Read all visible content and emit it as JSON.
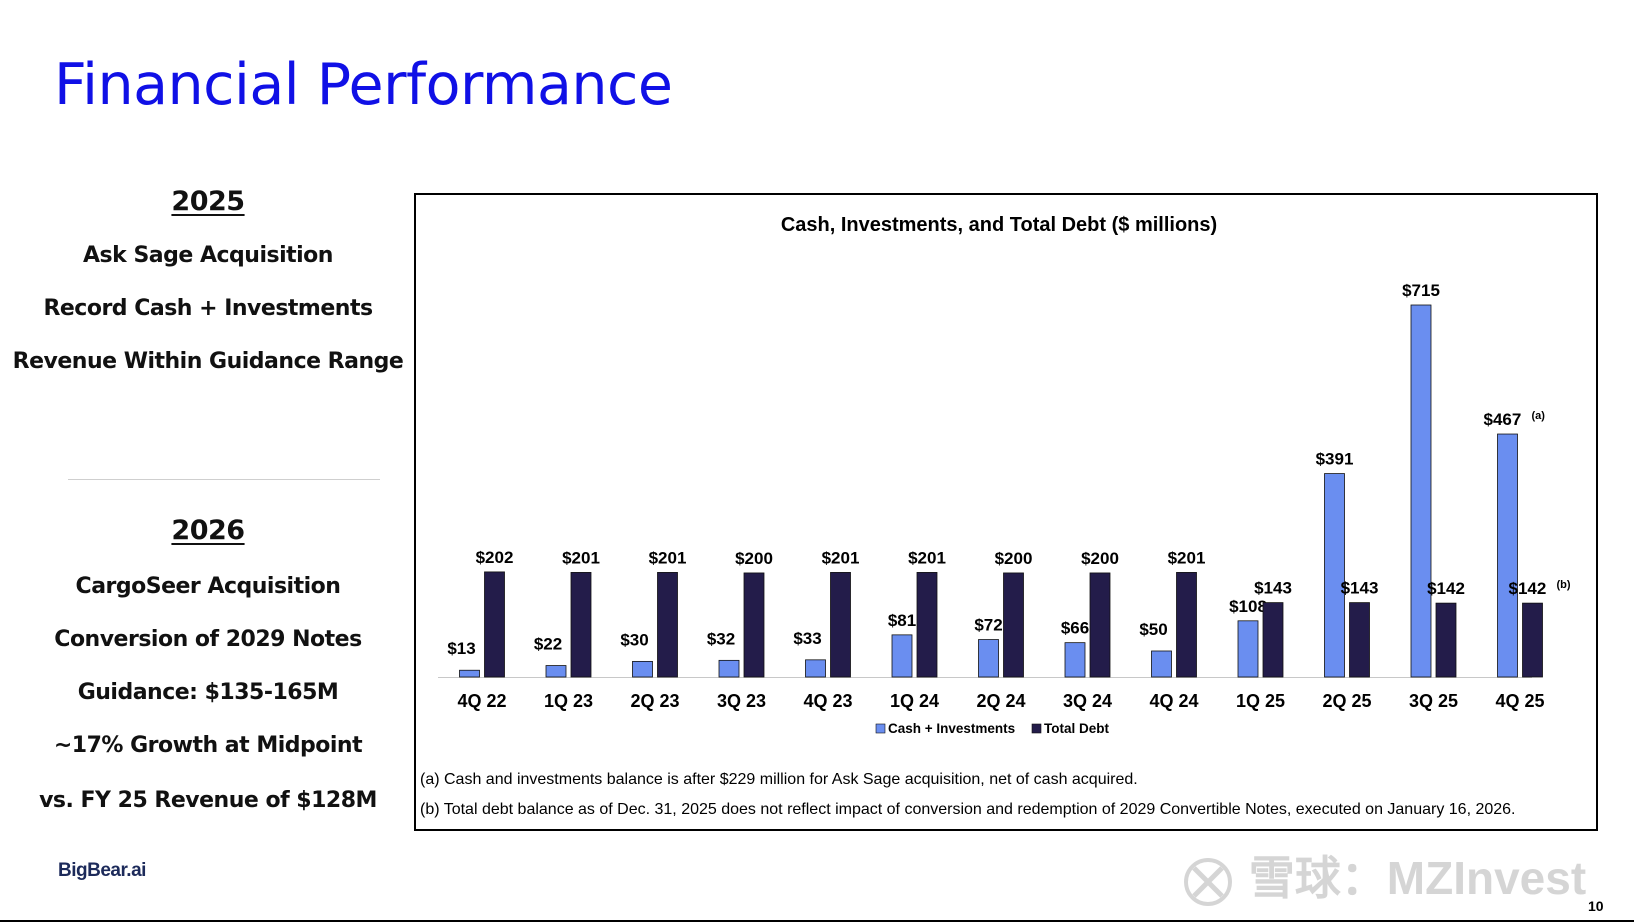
{
  "slide": {
    "title": "Financial Performance",
    "page_number": "10",
    "logo": "BigBear.ai",
    "watermark": "雪球：MZInvest"
  },
  "sidebar": {
    "year_2025": "2025",
    "items_2025": [
      "Ask Sage Acquisition",
      "Record Cash + Investments",
      "Revenue Within Guidance Range"
    ],
    "year_2026": "2026",
    "items_2026": [
      "CargoSeer Acquisition",
      "Conversion of 2029 Notes",
      "Guidance: $135-165M",
      "~17% Growth at Midpoint",
      "vs. FY 25 Revenue of $128M"
    ]
  },
  "footnotes": [
    "(a) Cash and investments balance is after $229 million for Ask Sage acquisition, net of cash acquired.",
    "(b) Total debt balance as of Dec. 31, 2025 does not reflect impact of conversion and redemption of 2029 Convertible Notes, executed on January 16, 2026."
  ],
  "chart_data": {
    "type": "bar",
    "title": "Cash, Investments, and Total Debt ($ millions)",
    "categories": [
      "4Q 22",
      "1Q 23",
      "2Q 23",
      "3Q 23",
      "4Q 23",
      "1Q 24",
      "2Q 24",
      "3Q 24",
      "4Q 24",
      "1Q 25",
      "2Q 25",
      "3Q 25",
      "4Q 25"
    ],
    "series": [
      {
        "name": "Cash + Investments",
        "color": "#6a8ef0",
        "values": [
          13,
          22,
          30,
          32,
          33,
          81,
          72,
          66,
          50,
          108,
          391,
          715,
          467
        ],
        "labels": [
          "$13",
          "$22",
          "$30",
          "$32",
          "$33",
          "$81",
          "$72",
          "$66",
          "$50",
          "$108",
          "$391",
          "$715",
          "$467"
        ],
        "label_notes": [
          "",
          "",
          "",
          "",
          "",
          "",
          "",
          "",
          "",
          "",
          "",
          "",
          "(a)"
        ]
      },
      {
        "name": "Total Debt",
        "color": "#231c4a",
        "values": [
          202,
          201,
          201,
          200,
          201,
          201,
          200,
          200,
          201,
          143,
          143,
          142,
          142
        ],
        "labels": [
          "$202",
          "$201",
          "$201",
          "$200",
          "$201",
          "$201",
          "$200",
          "$200",
          "$201",
          "$143",
          "$143",
          "$142",
          "$142"
        ],
        "label_notes": [
          "",
          "",
          "",
          "",
          "",
          "",
          "",
          "",
          "",
          "",
          "",
          "",
          "(b)"
        ]
      }
    ],
    "ylim": [
      0,
      715
    ],
    "grid": false,
    "legend": "bottom-center"
  }
}
